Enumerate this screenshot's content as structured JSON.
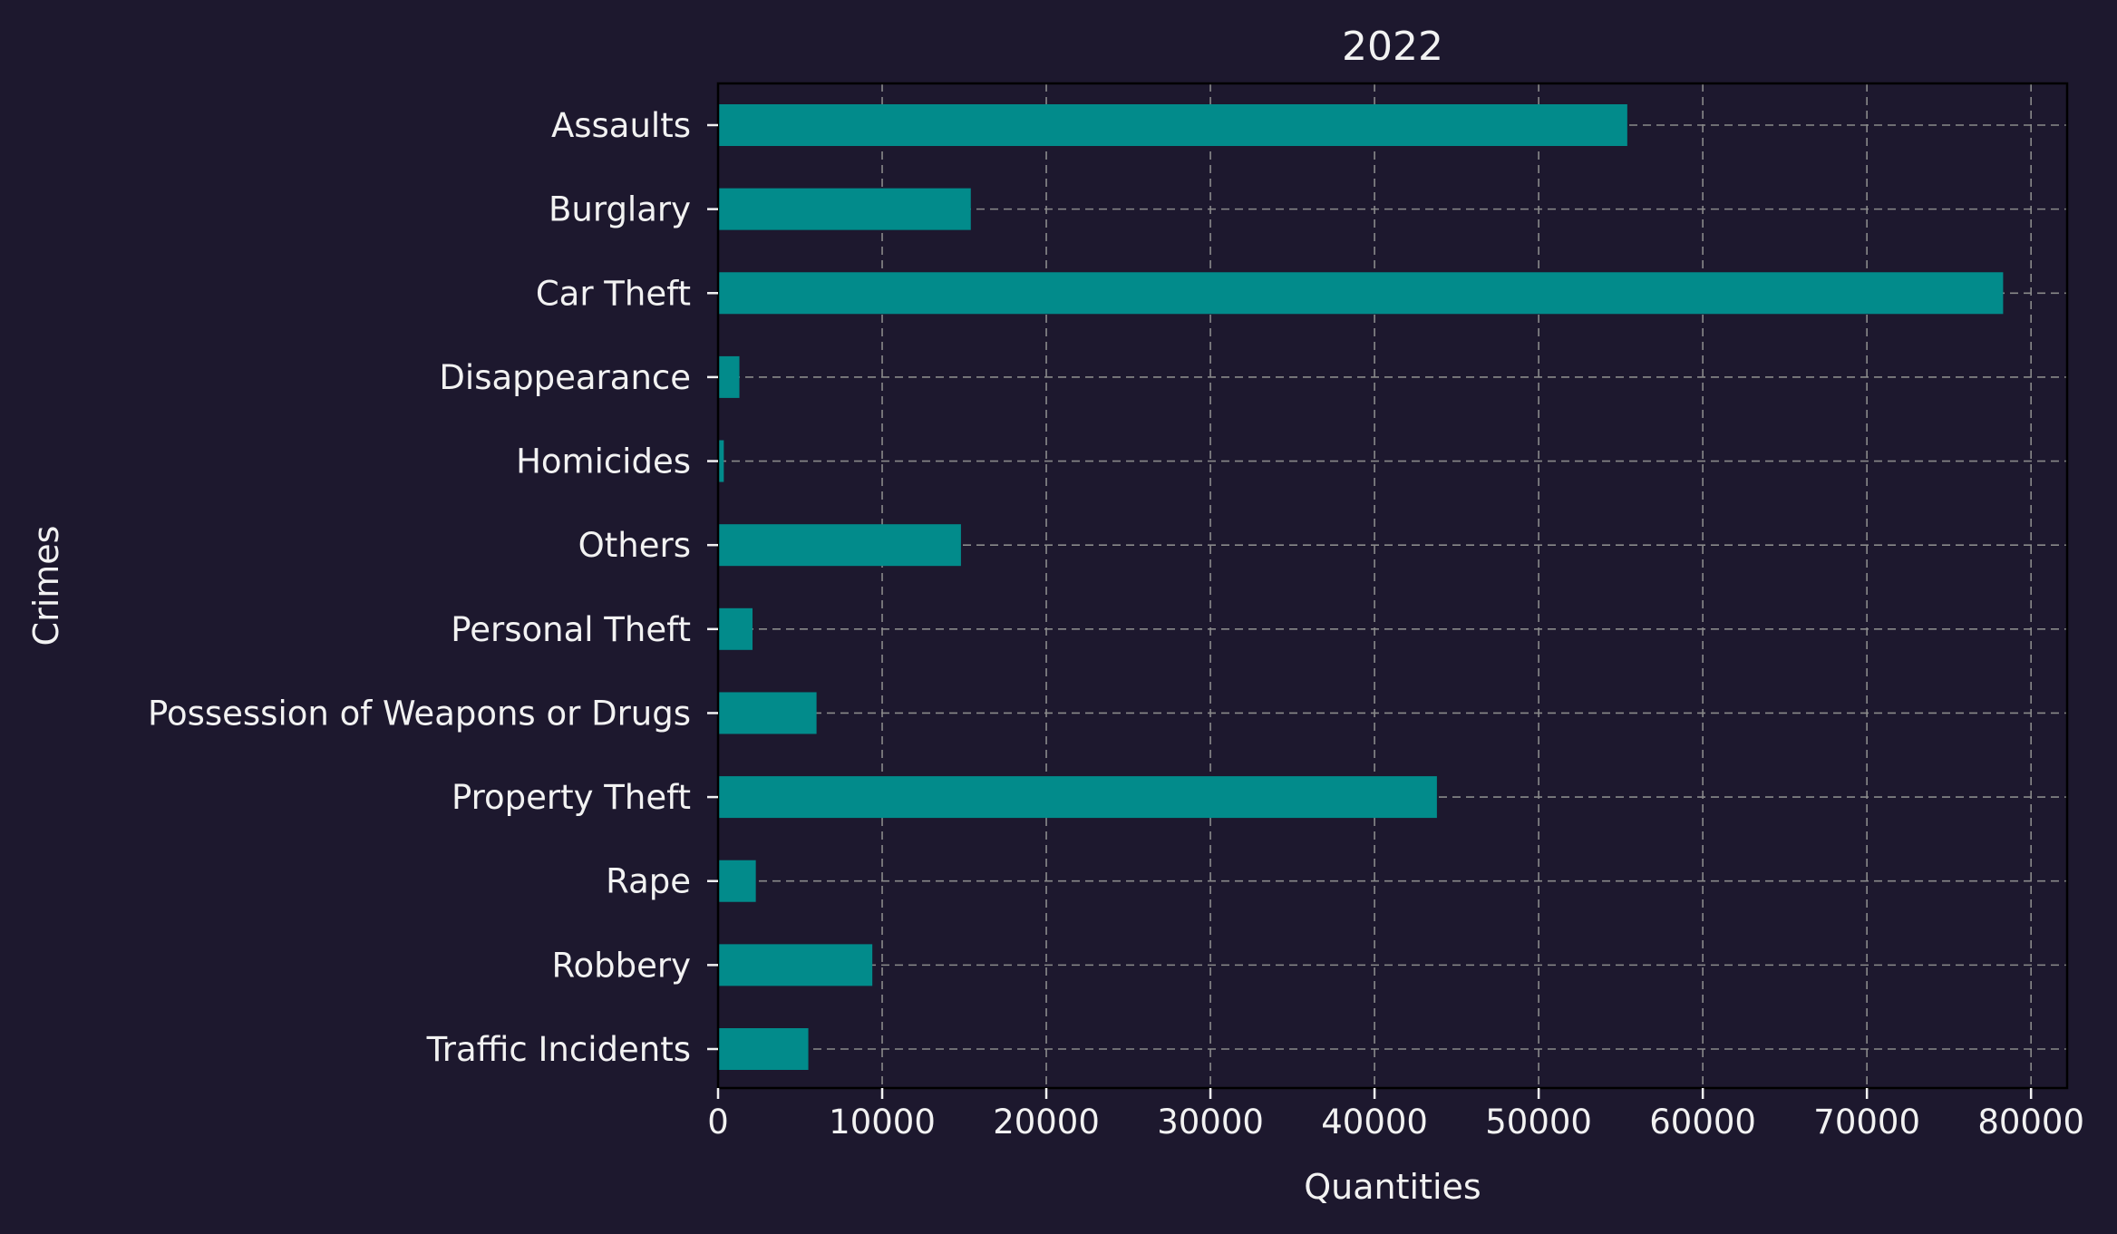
{
  "chart_data": {
    "type": "bar",
    "orientation": "horizontal",
    "title": "2022",
    "xlabel": "Quantities",
    "ylabel": "Crimes",
    "categories": [
      "Assaults",
      "Burglary",
      "Car Theft",
      "Disappearance",
      "Homicides",
      "Others",
      "Personal Theft",
      "Possession of Weapons or Drugs",
      "Property Theft",
      "Rape",
      "Robbery",
      "Traffic Incidents"
    ],
    "values": [
      55400,
      15400,
      78300,
      1300,
      350,
      14800,
      2100,
      6000,
      43800,
      2300,
      9400,
      5500
    ],
    "xlim": [
      0,
      82200
    ],
    "xticks": [
      0,
      10000,
      20000,
      30000,
      40000,
      50000,
      60000,
      70000,
      80000
    ],
    "grid": true,
    "colors": {
      "background": "#1d182e",
      "bar": "#028b8b",
      "text": "#f2f2f2",
      "grid": "#8a8a8a"
    }
  }
}
